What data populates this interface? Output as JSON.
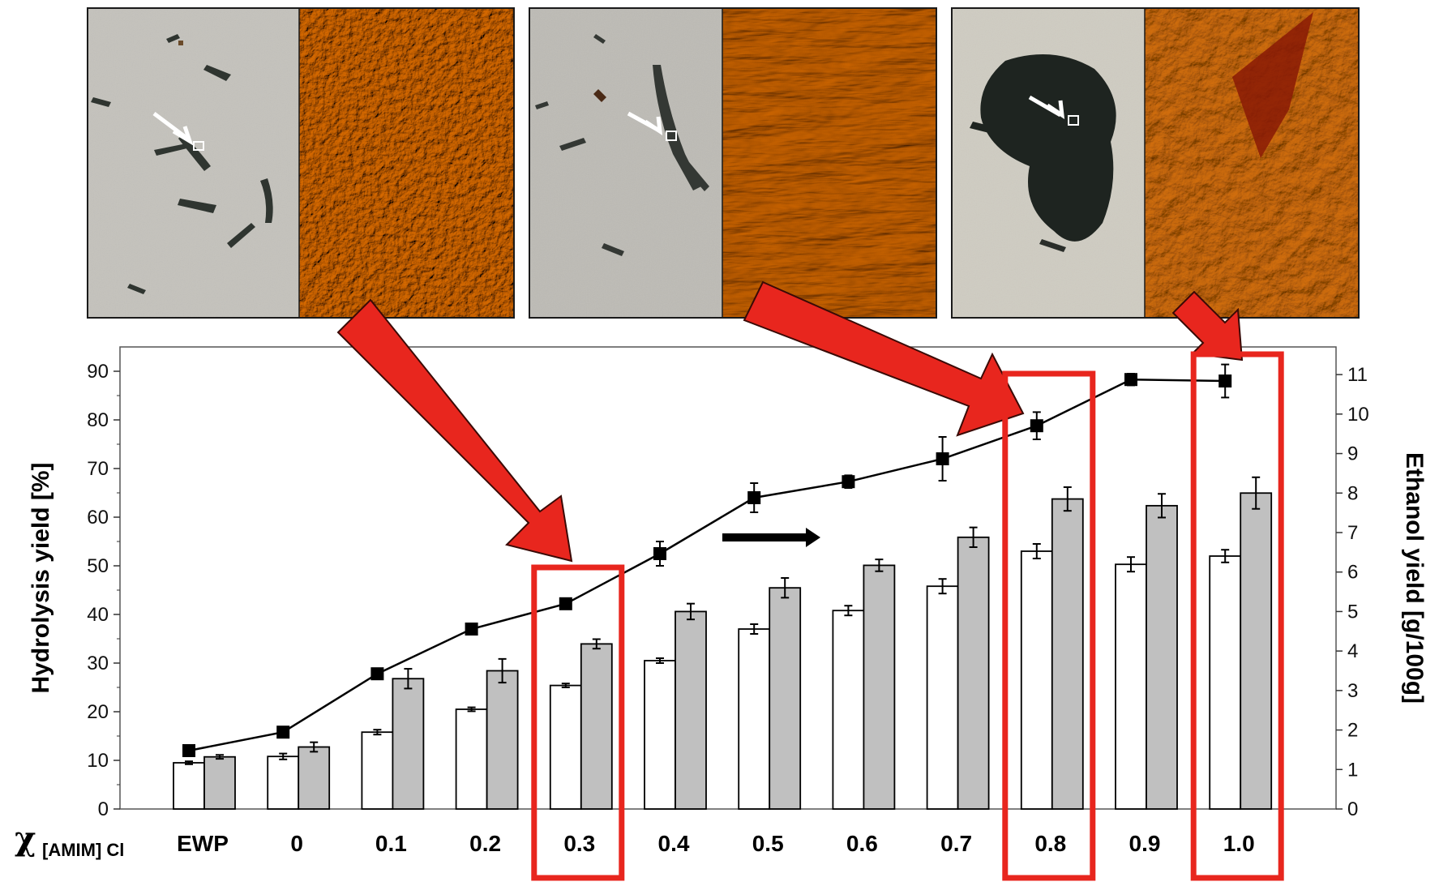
{
  "chart_data": {
    "type": "bar",
    "categories": [
      "EWP",
      "0",
      "0.1",
      "0.2",
      "0.3",
      "0.4",
      "0.5",
      "0.6",
      "0.7",
      "0.8",
      "0.9",
      "1.0"
    ],
    "x_axis_symbol": "χ",
    "x_axis_subscript": "[AMIM] Cl",
    "ylabel": "Hydrolysis yield [%]",
    "y2label": "Ethanol yield [g/100g]",
    "ylim": [
      0,
      95
    ],
    "y2lim": [
      0,
      11.7
    ],
    "y_ticks": [
      0,
      10,
      20,
      30,
      40,
      50,
      60,
      70,
      80,
      90
    ],
    "y2_ticks": [
      0,
      1,
      2,
      3,
      4,
      5,
      6,
      7,
      8,
      9,
      10,
      11
    ],
    "series": [
      {
        "axis": "left",
        "kind": "bar",
        "fill": "#ffffff",
        "values": [
          9.5,
          10.8,
          15.8,
          20.5,
          25.4,
          30.5,
          37.0,
          40.8,
          45.8,
          53.0,
          50.3,
          52.0
        ],
        "errors": [
          0.3,
          0.6,
          0.5,
          0.4,
          0.4,
          0.5,
          1.0,
          1.0,
          1.5,
          1.5,
          1.5,
          1.3
        ]
      },
      {
        "axis": "right",
        "kind": "bar",
        "fill": "#c0c0c0",
        "values": [
          1.32,
          1.57,
          3.3,
          3.5,
          4.18,
          5.0,
          5.6,
          6.17,
          6.88,
          7.85,
          7.68,
          8.0
        ],
        "errors": [
          0.05,
          0.12,
          0.25,
          0.3,
          0.12,
          0.2,
          0.25,
          0.15,
          0.25,
          0.3,
          0.3,
          0.4
        ]
      },
      {
        "axis": "left",
        "kind": "line",
        "marker": "square",
        "values": [
          12.0,
          15.8,
          27.8,
          37.0,
          42.2,
          52.5,
          64.0,
          67.3,
          72.0,
          78.8,
          88.3,
          88.0
        ],
        "errors": [
          0.4,
          0.5,
          0.6,
          0.5,
          0.5,
          2.5,
          3.0,
          1.3,
          4.5,
          2.8,
          1.2,
          3.4
        ]
      }
    ],
    "highlighted_categories": [
      "0.3",
      "0.8",
      "1.0"
    ],
    "colors": {
      "highlight": "#e8261e",
      "arrow_fill": "#e8261e",
      "arrow_stroke": "#3a0a06",
      "indicator_arrow": "#000000",
      "line": "#000000",
      "bar_open": "#ffffff",
      "bar_gray": "#c0c0c0"
    }
  },
  "micrographs": [
    {
      "panel": "light-microscopy",
      "tone": "gray"
    },
    {
      "panel": "afm-surface",
      "tone": "orange-uniform"
    },
    {
      "panel": "light-microscopy",
      "tone": "gray"
    },
    {
      "panel": "afm-surface",
      "tone": "orange-yellow-streaked"
    },
    {
      "panel": "light-microscopy",
      "tone": "gray"
    },
    {
      "panel": "afm-surface",
      "tone": "orange-cracked"
    }
  ]
}
